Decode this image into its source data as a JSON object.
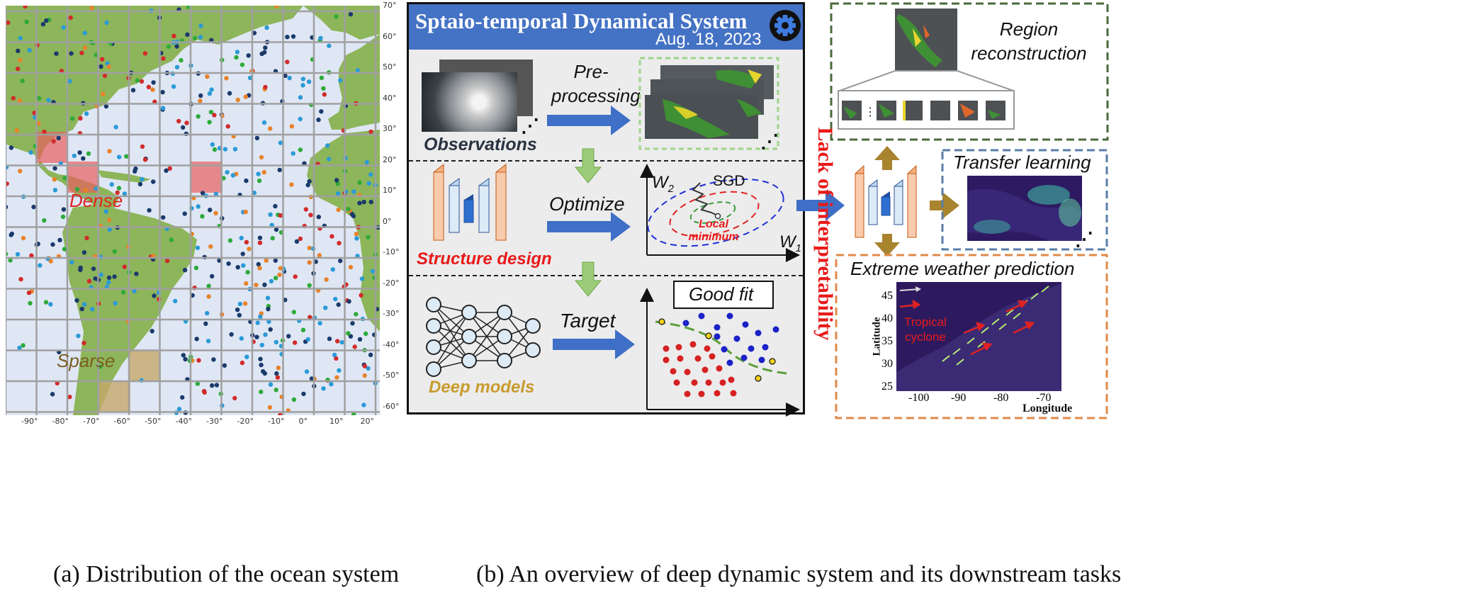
{
  "captions": {
    "left": "(a) Distribution of the ocean system",
    "right": "(b) An overview of deep dynamic system and its downstream tasks"
  },
  "map": {
    "lat_labels": [
      "70°",
      "60°",
      "50°",
      "40°",
      "30°",
      "20°",
      "10°",
      "0°",
      "-10°",
      "-20°",
      "-30°",
      "-40°",
      "-50°",
      "-60°"
    ],
    "lon_labels": [
      "-90°",
      "-80°",
      "-70°",
      "-60°",
      "-50°",
      "-40°",
      "-30°",
      "-20°",
      "-10°",
      "0°",
      "10°",
      "20°"
    ],
    "dense_label": "Dense",
    "sparse_label": "Sparse",
    "colors": {
      "ocean": "#dfe7f5",
      "land": "#8db55a",
      "dense": "#e8605e",
      "sparse": "#c6a76a",
      "grid": "#a0a0a0"
    }
  },
  "panel": {
    "title": "Sptaio-temporal Dynamical System",
    "date": "Aug. 18, 2023",
    "gear_icon": "gear-icon",
    "header_color": "#4472c4",
    "row1": {
      "observations": "Observations",
      "arrow_label": "Pre-\nprocessing"
    },
    "row2": {
      "structure": "Structure design",
      "arrow_label": "Optimize",
      "w2": "W",
      "w2_sub": "2",
      "w1": "W",
      "w1_sub": "1",
      "sgd": "SGD",
      "local_min": "Local\nminimum"
    },
    "row3": {
      "deep_models": "Deep models",
      "arrow_label": "Target",
      "good_fit": "Good fit"
    }
  },
  "vertical_label": "Lack of interpretability",
  "tasks": {
    "region": "Region\nreconstruction",
    "transfer": "Transfer learning",
    "extreme": "Extreme weather prediction",
    "weather_chart": {
      "ylabel": "Latitude",
      "xlabel": "Longitude",
      "yticks": [
        "45",
        "40",
        "35",
        "30",
        "25"
      ],
      "xticks": [
        "-100",
        "-90",
        "-80",
        "-70"
      ],
      "annotation": "Tropical\ncyclone"
    }
  }
}
